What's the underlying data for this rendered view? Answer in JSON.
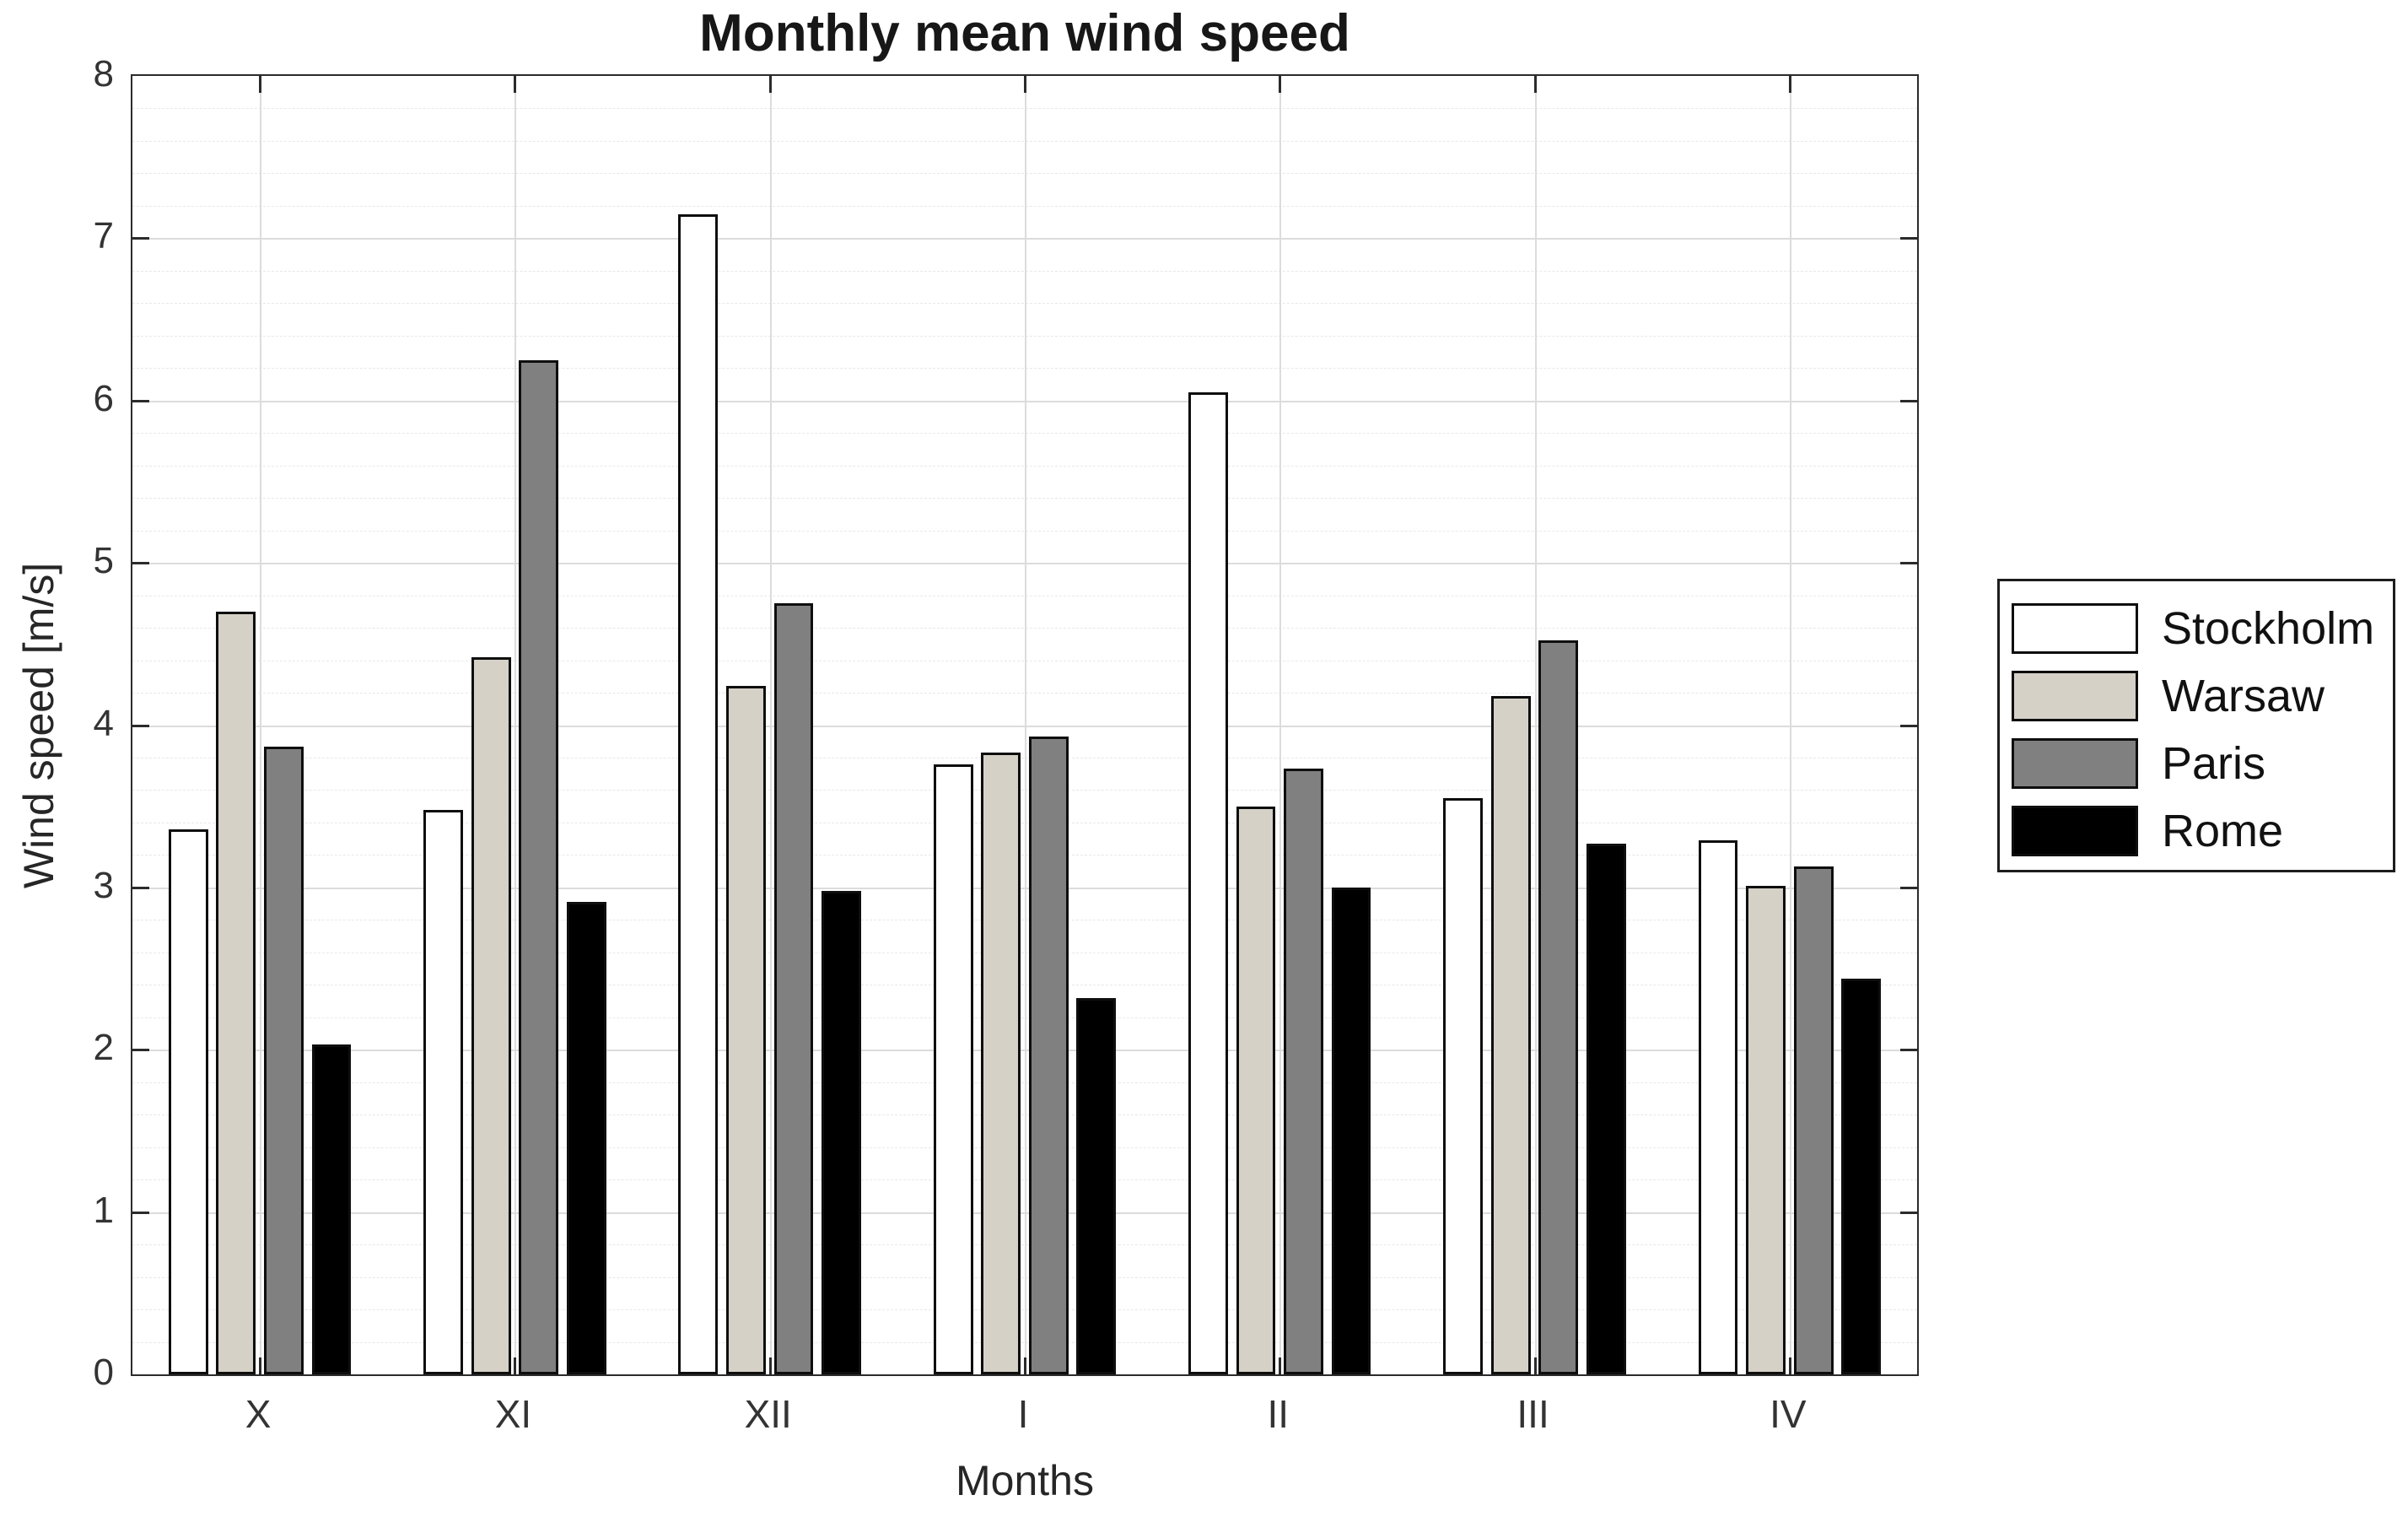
{
  "chart_data": {
    "type": "bar",
    "title": "Monthly mean wind speed",
    "xlabel": "Months",
    "ylabel": "Wind speed [m/s]",
    "categories": [
      "X",
      "XI",
      "XII",
      "I",
      "II",
      "III",
      "IV"
    ],
    "series": [
      {
        "name": "Stockholm",
        "color": "#ffffff",
        "values": [
          3.36,
          3.48,
          7.15,
          3.76,
          6.05,
          3.55,
          3.29
        ]
      },
      {
        "name": "Warsaw",
        "color": "#d5d1c7",
        "values": [
          4.7,
          4.42,
          4.24,
          3.83,
          3.5,
          4.18,
          3.01
        ]
      },
      {
        "name": "Paris",
        "color": "#808080",
        "values": [
          3.87,
          6.25,
          4.75,
          3.93,
          3.73,
          4.52,
          3.13
        ]
      },
      {
        "name": "Rome",
        "color": "#000000",
        "values": [
          2.03,
          2.91,
          2.98,
          2.32,
          3.0,
          3.27,
          2.44
        ]
      }
    ],
    "ylim": [
      0,
      8
    ],
    "yticks": [
      0,
      1,
      2,
      3,
      4,
      5,
      6,
      7,
      8
    ],
    "grid": {
      "major": true,
      "minor": true,
      "minor_step": 0.2,
      "vertical_at_categories": true
    },
    "legend": {
      "position": "right-outside",
      "entries": [
        "Stockholm",
        "Warsaw",
        "Paris",
        "Rome"
      ]
    },
    "bar_edge_color": "#0e0e0e"
  }
}
